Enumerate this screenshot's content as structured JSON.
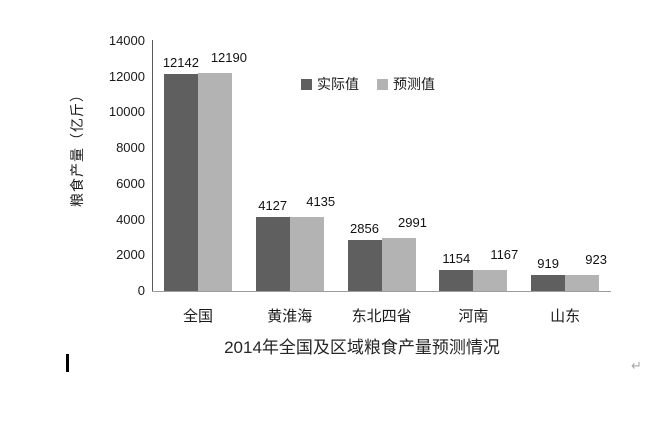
{
  "document": {
    "background": "#ffffff",
    "paragraph_mark": "↵",
    "caret_visible": true
  },
  "chart_data": {
    "type": "bar",
    "title": "2014年全国及区域粮食产量预测情况",
    "xlabel": "",
    "ylabel": "粮食产量（亿斤）",
    "categories": [
      "全国",
      "黄淮海",
      "东北四省",
      "河南",
      "山东"
    ],
    "series": [
      {
        "name": "实际值",
        "color": "#5f5f5f",
        "values": [
          12142,
          4127,
          2856,
          1154,
          919
        ]
      },
      {
        "name": "预测值",
        "color": "#b3b3b3",
        "values": [
          12190,
          4135,
          2991,
          1167,
          923
        ]
      }
    ],
    "ylim": [
      0,
      14000
    ],
    "ytick_step": 2000,
    "yticks": [
      0,
      2000,
      4000,
      6000,
      8000,
      10000,
      12000,
      14000
    ],
    "grid": false,
    "data_labels": true,
    "legend_position": "inside-top",
    "axis_color_y": "#595959",
    "axis_color_x": "#9d9d9d",
    "text_color": "#1a1a1a"
  }
}
